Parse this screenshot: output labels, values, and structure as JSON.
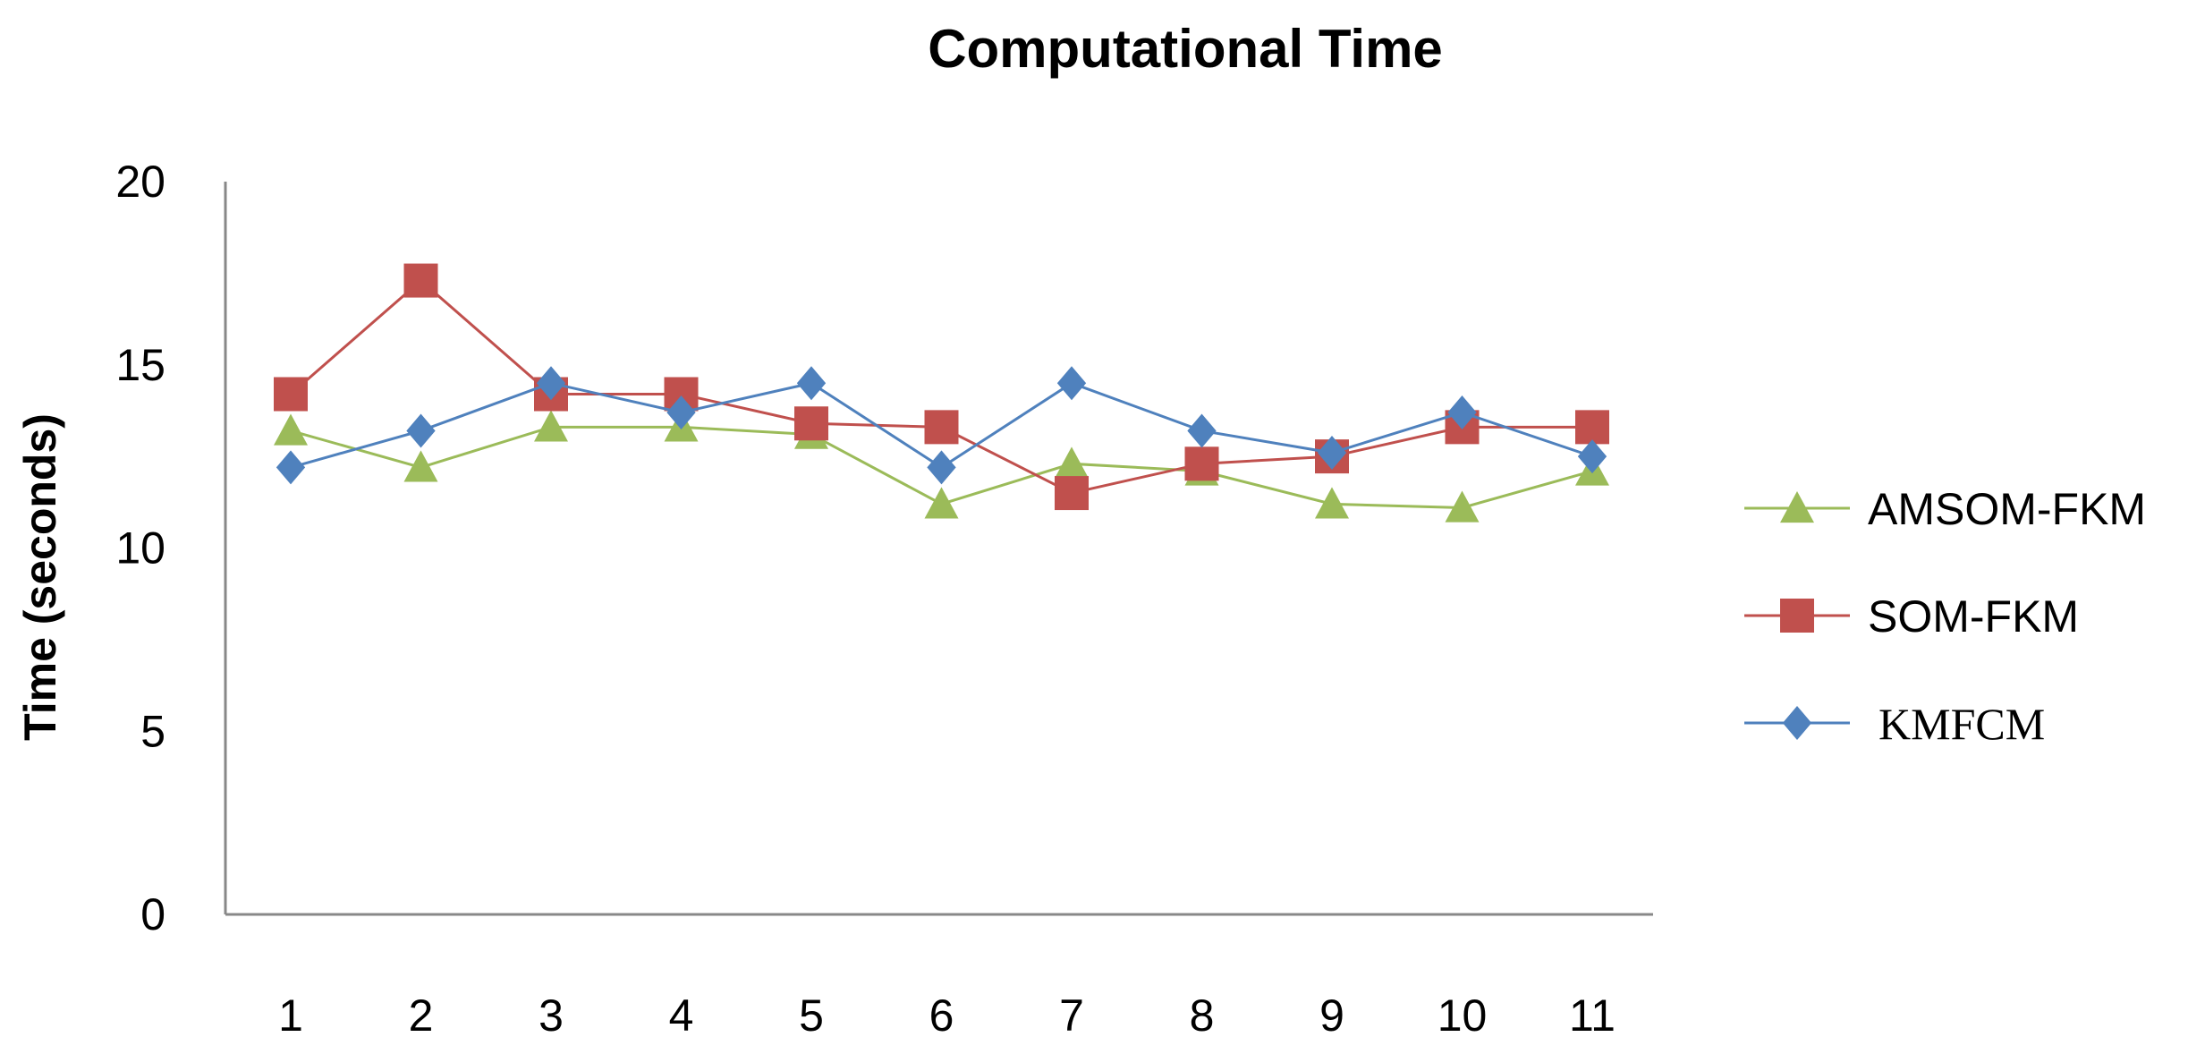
{
  "chart_data": {
    "type": "line",
    "title": "Computational Time",
    "xlabel": "",
    "ylabel": "Time  (seconds)",
    "categories": [
      "1",
      "2",
      "3",
      "4",
      "5",
      "6",
      "7",
      "8",
      "9",
      "10",
      "11"
    ],
    "ylim": [
      0,
      20
    ],
    "yticks": [
      "0",
      "5",
      "10",
      "15",
      "20"
    ],
    "grid": false,
    "legend_position": "right",
    "series": [
      {
        "name": "AMSOM-FKM",
        "color": "#9BBB59",
        "marker": "triangle",
        "values": [
          13.2,
          12.2,
          13.3,
          13.3,
          13.1,
          11.2,
          12.3,
          12.1,
          11.2,
          11.1,
          12.1
        ]
      },
      {
        "name": "SOM-FKM",
        "color": "#C0504D",
        "marker": "square",
        "values": [
          14.2,
          17.3,
          14.2,
          14.2,
          13.4,
          13.3,
          11.5,
          12.3,
          12.5,
          13.3,
          13.3
        ]
      },
      {
        "name": "KMFCM",
        "color": "#4F81BD",
        "marker": "diamond",
        "values": [
          12.2,
          13.2,
          14.5,
          13.7,
          14.5,
          12.2,
          14.5,
          13.2,
          12.6,
          13.7,
          12.5
        ]
      }
    ]
  }
}
